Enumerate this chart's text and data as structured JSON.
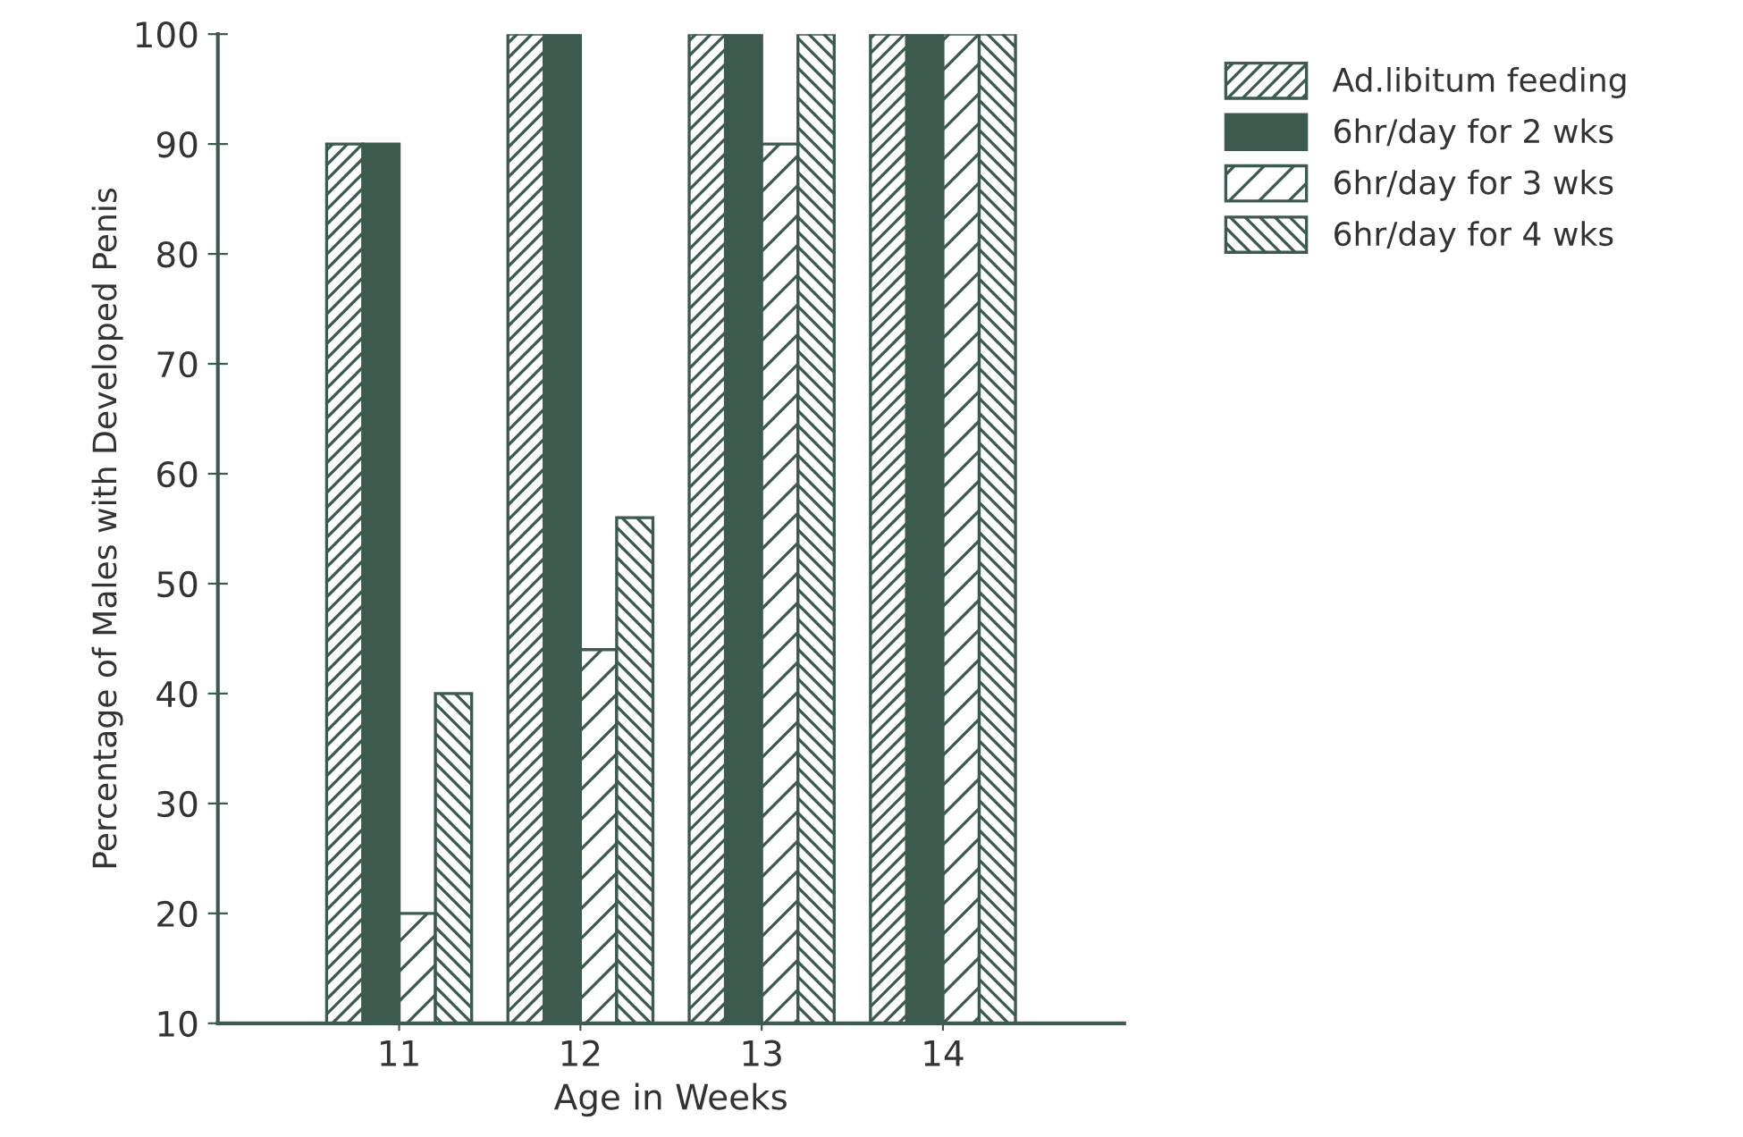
{
  "chart_data": {
    "type": "bar",
    "xlabel": "Age in Weeks",
    "ylabel": "Percentage of Males with Developed Penis",
    "categories": [
      "11",
      "12",
      "13",
      "14"
    ],
    "series": [
      {
        "name": "Ad.libitum feeding",
        "color": "#3d5a4f",
        "values": [
          90,
          100,
          100,
          100
        ]
      },
      {
        "name": "6hr/day for 2 wks",
        "color": "#3d5a4f",
        "values": [
          90,
          100,
          100,
          100
        ]
      },
      {
        "name": "6hr/day for 3 wks",
        "color": "#3d5a4f",
        "values": [
          20,
          44,
          90,
          100
        ]
      },
      {
        "name": "6hr/day for 4 wks",
        "color": "#3d5a4f",
        "values": [
          40,
          56,
          100,
          100
        ]
      }
    ],
    "ylim": [
      10,
      100
    ],
    "yticks": [
      10,
      20,
      30,
      40,
      50,
      60,
      70,
      80,
      90,
      100
    ],
    "grid": false,
    "legend": "top right"
  }
}
